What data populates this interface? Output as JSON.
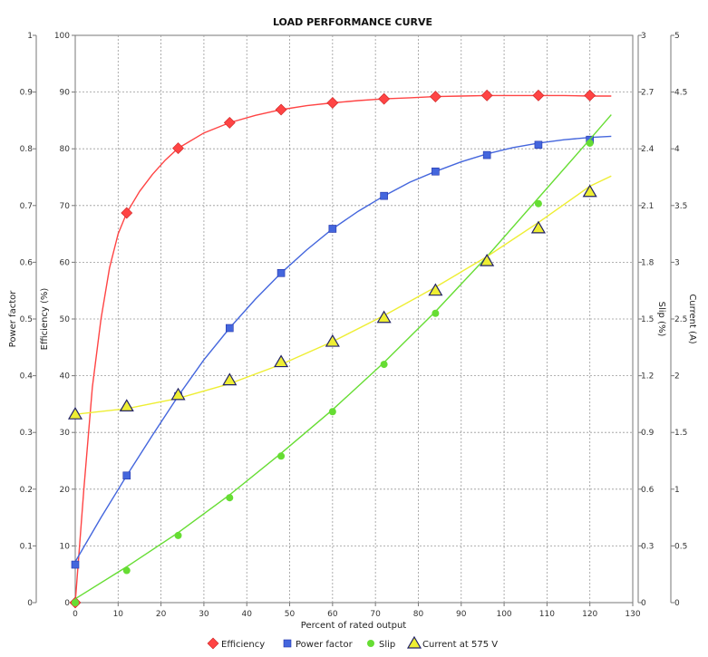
{
  "chart_data": {
    "type": "line",
    "title": "LOAD PERFORMANCE CURVE",
    "xlabel": "Percent of rated output",
    "xlim": [
      0,
      130
    ],
    "x_ticks": [
      "0",
      "10",
      "20",
      "30",
      "40",
      "50",
      "60",
      "70",
      "80",
      "90",
      "100",
      "110",
      "120",
      "130"
    ],
    "grid": true,
    "legend_position": "bottom",
    "axes": {
      "power_factor": {
        "label": "Power factor",
        "side": "left",
        "lim": [
          0,
          1
        ],
        "ticks": [
          "0",
          "0.1",
          "0.2",
          "0.3",
          "0.4",
          "0.5",
          "0.6",
          "0.7",
          "0.8",
          "0.9",
          "1"
        ]
      },
      "efficiency": {
        "label": "Efficiency (%)",
        "side": "left",
        "lim": [
          0,
          100
        ],
        "ticks": [
          "0",
          "10",
          "20",
          "30",
          "40",
          "50",
          "60",
          "70",
          "80",
          "90",
          "100"
        ]
      },
      "slip": {
        "label": "Slip (%)",
        "side": "right",
        "lim": [
          0,
          3
        ],
        "ticks": [
          "0",
          "0.3",
          "0.6",
          "0.9",
          "1.2",
          "1.5",
          "1.8",
          "2.1",
          "2.4",
          "2.7",
          "3"
        ]
      },
      "current": {
        "label": "Current (A)",
        "side": "right",
        "lim": [
          0,
          5
        ],
        "ticks": [
          "0",
          "0.5",
          "1",
          "1.5",
          "2",
          "2.5",
          "3",
          "3.5",
          "4",
          "4.5",
          "5"
        ]
      }
    },
    "series": [
      {
        "name": "Efficiency",
        "axis": "efficiency",
        "color": "#ff4444",
        "marker": "diamond",
        "points": [
          [
            0,
            0
          ],
          [
            12,
            68.7
          ],
          [
            24,
            80.1
          ],
          [
            36,
            84.6
          ],
          [
            48,
            86.9
          ],
          [
            60,
            88.1
          ],
          [
            72,
            88.8
          ],
          [
            84,
            89.2
          ],
          [
            96,
            89.4
          ],
          [
            108,
            89.4
          ],
          [
            120,
            89.4
          ]
        ],
        "curve": [
          [
            0,
            0
          ],
          [
            2,
            20
          ],
          [
            4,
            38
          ],
          [
            6,
            50
          ],
          [
            8,
            59
          ],
          [
            10,
            65
          ],
          [
            12,
            68.7
          ],
          [
            15,
            72.5
          ],
          [
            18,
            75.5
          ],
          [
            21,
            78
          ],
          [
            24,
            80.1
          ],
          [
            30,
            82.8
          ],
          [
            36,
            84.6
          ],
          [
            42,
            85.9
          ],
          [
            48,
            86.9
          ],
          [
            54,
            87.6
          ],
          [
            60,
            88.1
          ],
          [
            66,
            88.5
          ],
          [
            72,
            88.8
          ],
          [
            78,
            89
          ],
          [
            84,
            89.2
          ],
          [
            90,
            89.3
          ],
          [
            96,
            89.4
          ],
          [
            102,
            89.4
          ],
          [
            108,
            89.4
          ],
          [
            114,
            89.4
          ],
          [
            120,
            89.3
          ],
          [
            125,
            89.3
          ]
        ]
      },
      {
        "name": "Power factor",
        "axis": "power_factor",
        "color": "#4466dd",
        "marker": "square",
        "points": [
          [
            0,
            0.067
          ],
          [
            12,
            0.224
          ],
          [
            24,
            0.364
          ],
          [
            36,
            0.484
          ],
          [
            48,
            0.581
          ],
          [
            60,
            0.659
          ],
          [
            72,
            0.717
          ],
          [
            84,
            0.76
          ],
          [
            96,
            0.789
          ],
          [
            108,
            0.807
          ],
          [
            120,
            0.816
          ]
        ],
        "curve": [
          [
            0,
            0.072
          ],
          [
            6,
            0.15
          ],
          [
            12,
            0.224
          ],
          [
            18,
            0.295
          ],
          [
            24,
            0.364
          ],
          [
            30,
            0.428
          ],
          [
            36,
            0.484
          ],
          [
            42,
            0.535
          ],
          [
            48,
            0.581
          ],
          [
            54,
            0.622
          ],
          [
            60,
            0.659
          ],
          [
            66,
            0.69
          ],
          [
            72,
            0.717
          ],
          [
            78,
            0.741
          ],
          [
            84,
            0.76
          ],
          [
            90,
            0.777
          ],
          [
            96,
            0.791
          ],
          [
            102,
            0.802
          ],
          [
            108,
            0.81
          ],
          [
            114,
            0.816
          ],
          [
            120,
            0.82
          ],
          [
            125,
            0.822
          ]
        ]
      },
      {
        "name": "Slip",
        "axis": "slip",
        "color": "#66dd33",
        "marker": "circle",
        "points": [
          [
            0,
            0
          ],
          [
            12,
            0.17
          ],
          [
            24,
            0.355
          ],
          [
            36,
            0.555
          ],
          [
            48,
            0.775
          ],
          [
            60,
            1.01
          ],
          [
            72,
            1.26
          ],
          [
            84,
            1.53
          ],
          [
            96,
            1.81
          ],
          [
            108,
            2.11
          ],
          [
            120,
            2.43
          ]
        ],
        "curve": [
          [
            0,
            0.02
          ],
          [
            12,
            0.19
          ],
          [
            24,
            0.37
          ],
          [
            36,
            0.57
          ],
          [
            48,
            0.79
          ],
          [
            60,
            1.02
          ],
          [
            72,
            1.27
          ],
          [
            84,
            1.54
          ],
          [
            96,
            1.83
          ],
          [
            108,
            2.14
          ],
          [
            120,
            2.45
          ],
          [
            125,
            2.58
          ]
        ]
      },
      {
        "name": "Current at 575 V",
        "axis": "current",
        "color": "#eeee33",
        "marker": "triangle",
        "points": [
          [
            0,
            1.66
          ],
          [
            12,
            1.73
          ],
          [
            24,
            1.83
          ],
          [
            36,
            1.96
          ],
          [
            48,
            2.12
          ],
          [
            60,
            2.3
          ],
          [
            72,
            2.51
          ],
          [
            84,
            2.75
          ],
          [
            96,
            3.01
          ],
          [
            108,
            3.3
          ],
          [
            120,
            3.62
          ]
        ],
        "curve": [
          [
            0,
            1.66
          ],
          [
            12,
            1.71
          ],
          [
            24,
            1.8
          ],
          [
            36,
            1.93
          ],
          [
            48,
            2.1
          ],
          [
            60,
            2.3
          ],
          [
            72,
            2.53
          ],
          [
            84,
            2.78
          ],
          [
            96,
            3.05
          ],
          [
            108,
            3.35
          ],
          [
            120,
            3.67
          ],
          [
            125,
            3.76
          ]
        ]
      }
    ]
  }
}
